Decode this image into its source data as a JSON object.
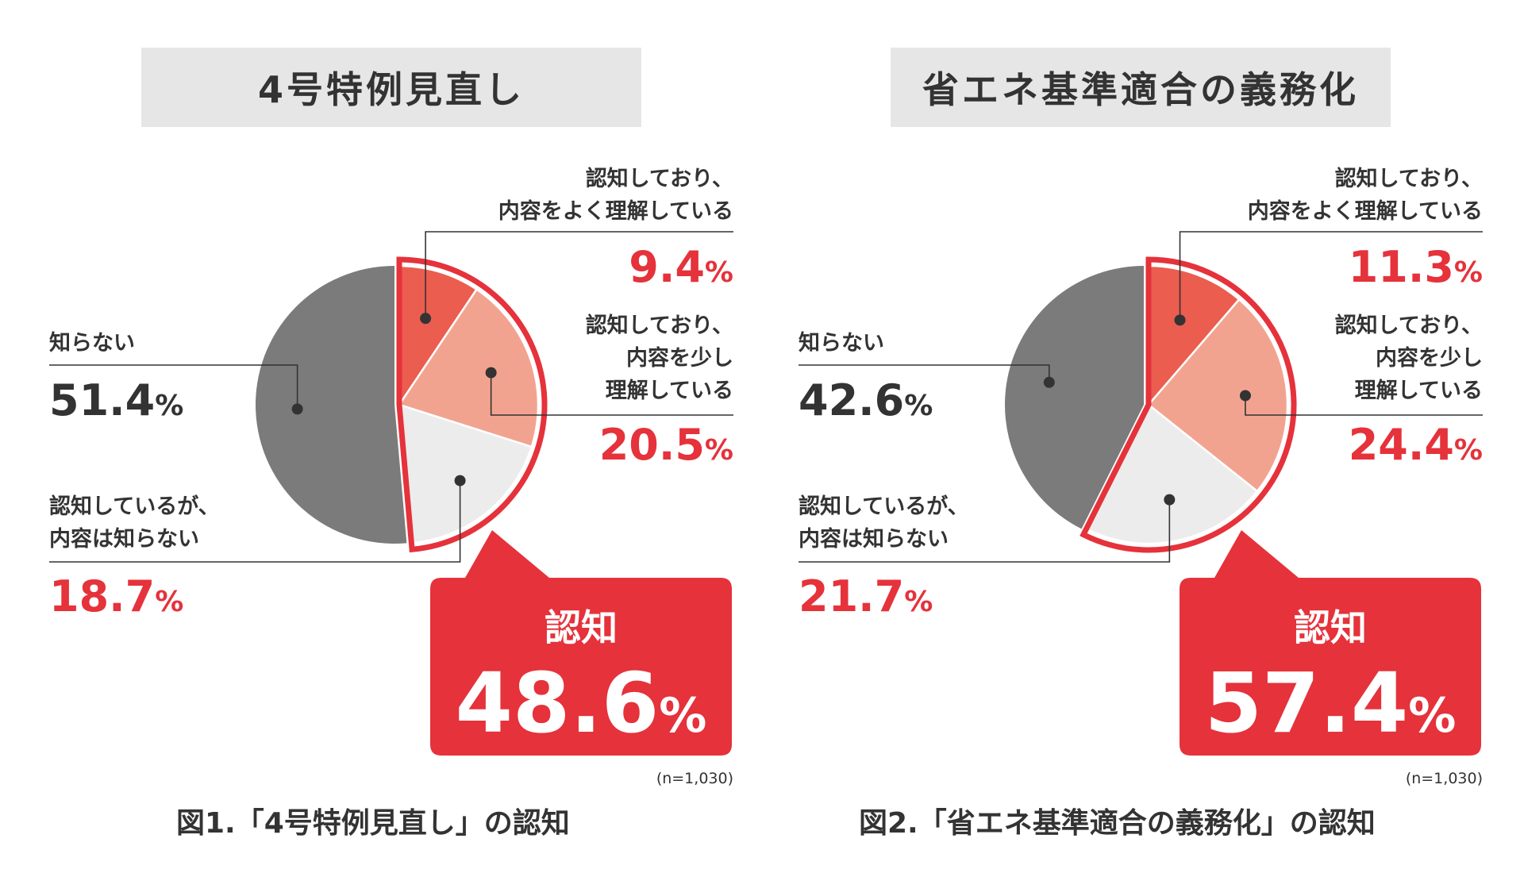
{
  "colors": {
    "accent": "#e5323b",
    "dark_slice": "#7b7b7b",
    "mid_slice": "#eb5d4f",
    "light_slice": "#f2a390",
    "pale_slice": "#ececec",
    "banner": "#e6e6e6",
    "text": "#333333"
  },
  "figures": [
    {
      "title": "4号特例見直し",
      "caption": "図1.「4号特例見直し」の認知",
      "sample_note": "(n=1,030)",
      "callout": {
        "label": "認知",
        "value": "48.6",
        "unit": "%"
      },
      "categories": [
        {
          "label_lines": [
            "認知しており、",
            "内容をよく理解している"
          ],
          "value": "9.4",
          "unit": "%"
        },
        {
          "label_lines": [
            "認知しており、",
            "内容を少し",
            "理解している"
          ],
          "value": "20.5",
          "unit": "%"
        },
        {
          "label_lines": [
            "認知しているが、",
            "内容は知らない"
          ],
          "value": "18.7",
          "unit": "%"
        },
        {
          "label_lines": [
            "知らない"
          ],
          "value": "51.4",
          "unit": "%"
        }
      ]
    },
    {
      "title": "省エネ基準適合の義務化",
      "caption": "図2.「省エネ基準適合の義務化」の認知",
      "sample_note": "(n=1,030)",
      "callout": {
        "label": "認知",
        "value": "57.4",
        "unit": "%"
      },
      "categories": [
        {
          "label_lines": [
            "認知しており、",
            "内容をよく理解している"
          ],
          "value": "11.3",
          "unit": "%"
        },
        {
          "label_lines": [
            "認知しており、",
            "内容を少し",
            "理解している"
          ],
          "value": "24.4",
          "unit": "%"
        },
        {
          "label_lines": [
            "認知しているが、",
            "内容は知らない"
          ],
          "value": "21.7",
          "unit": "%"
        },
        {
          "label_lines": [
            "知らない"
          ],
          "value": "42.6",
          "unit": "%"
        }
      ]
    }
  ],
  "chart_data": [
    {
      "type": "pie",
      "title": "4号特例見直し",
      "categories": [
        "認知しており、内容をよく理解している",
        "認知しており、内容を少し理解している",
        "認知しているが、内容は知らない",
        "知らない"
      ],
      "values": [
        9.4,
        20.5,
        18.7,
        51.4
      ],
      "unit": "%",
      "highlight_total": 48.6,
      "n": 1030
    },
    {
      "type": "pie",
      "title": "省エネ基準適合の義務化",
      "categories": [
        "認知しており、内容をよく理解している",
        "認知しており、内容を少し理解している",
        "認知しているが、内容は知らない",
        "知らない"
      ],
      "values": [
        11.3,
        24.4,
        21.7,
        42.6
      ],
      "unit": "%",
      "highlight_total": 57.4,
      "n": 1030
    }
  ]
}
